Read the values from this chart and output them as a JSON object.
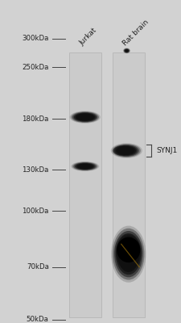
{
  "background_color": "#d2d2d2",
  "lane_bg_color": "#c8c8c8",
  "fig_bg_color": "#d2d2d2",
  "lane_labels": [
    "Jurkat",
    "Rat brain"
  ],
  "mw_markers": [
    300,
    250,
    180,
    130,
    100,
    70,
    50
  ],
  "annotation_label": "SYNJ1",
  "label_fontsize": 6.5,
  "marker_fontsize": 6.2
}
